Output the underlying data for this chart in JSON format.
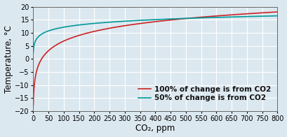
{
  "xlim": [
    0,
    800
  ],
  "ylim": [
    -20,
    20
  ],
  "xticks": [
    0,
    50,
    100,
    150,
    200,
    250,
    300,
    350,
    400,
    450,
    500,
    550,
    600,
    650,
    700,
    750,
    800
  ],
  "yticks": [
    -20,
    -15,
    -10,
    -5,
    0,
    5,
    10,
    15,
    20
  ],
  "xlabel": "CO₂, ppm",
  "ylabel": "Temperature, °C",
  "line1_color": "#cc2222",
  "line2_color": "#009999",
  "line1_label": "100% of change is from CO2",
  "line2_label": "50% of change is from CO2",
  "background_color": "#dce8f0",
  "grid_color": "#ffffff",
  "legend_fontsize": 7.5,
  "axis_fontsize": 8.5,
  "tick_fontsize": 7,
  "line1_A": 13.0,
  "line1_B": -18.0,
  "line2_A": 6.5,
  "line2_B": 2.5
}
